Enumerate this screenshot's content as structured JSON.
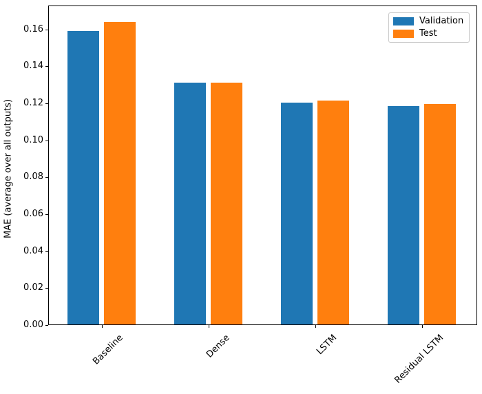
{
  "chart_data": {
    "type": "bar",
    "title": "",
    "xlabel": "",
    "ylabel": "MAE (average over all outputs)",
    "categories": [
      "Baseline",
      "Dense",
      "LSTM",
      "Residual LSTM"
    ],
    "series": [
      {
        "name": "Validation",
        "color": "#1f77b4",
        "values": [
          0.159,
          0.131,
          0.1205,
          0.1185
        ]
      },
      {
        "name": "Test",
        "color": "#ff7f0e",
        "values": [
          0.164,
          0.131,
          0.1215,
          0.1195
        ]
      }
    ],
    "ylim": [
      0,
      0.1729
    ],
    "yticks": [
      {
        "value": 0.0,
        "label": "0.00"
      },
      {
        "value": 0.02,
        "label": "0.02"
      },
      {
        "value": 0.04,
        "label": "0.04"
      },
      {
        "value": 0.06,
        "label": "0.06"
      },
      {
        "value": 0.08,
        "label": "0.08"
      },
      {
        "value": 0.1,
        "label": "0.10"
      },
      {
        "value": 0.12,
        "label": "0.12"
      },
      {
        "value": 0.14,
        "label": "0.14"
      },
      {
        "value": 0.16,
        "label": "0.16"
      }
    ],
    "xtick_rotation_deg": 45,
    "legend": {
      "location": "upper right",
      "entries": [
        "Validation",
        "Test"
      ]
    },
    "grid": false,
    "axis_color": "#000000",
    "background": "#ffffff"
  }
}
